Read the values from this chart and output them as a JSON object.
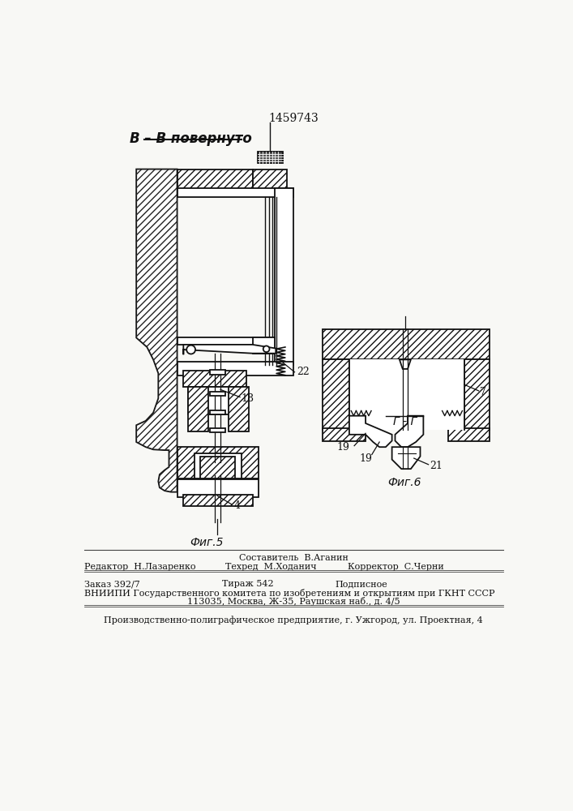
{
  "patent_number": "1459743",
  "title_label": "В – В повернуто",
  "fig5_label": "Фиг.5",
  "fig6_label": "Фиг.6",
  "label_gamma": "Г - Г",
  "footer_editor": "Редактор  Н.Лазаренко",
  "footer_compiler": "Составитель  В.Аганин",
  "footer_techred": "Техред  М.Ходанич",
  "footer_corrector": "Корректор  С.Черни",
  "footer_order": "Заказ 392/7",
  "footer_tirazh": "Тираж 542",
  "footer_podpis": "Подписное",
  "footer_vniip": "ВНИИПИ Государственного комитета по изобретениям и открытиям при ГКНТ СССР",
  "footer_addr": "113035, Москва, Ж-35, Раушская наб., д. 4/5",
  "footer_prod": "Производственно-полиграфическое предприятие, г. Ужгород, ул. Проектная, 4",
  "bg_color": "#f8f8f5",
  "line_color": "#111111",
  "hatch_color": "#222222"
}
